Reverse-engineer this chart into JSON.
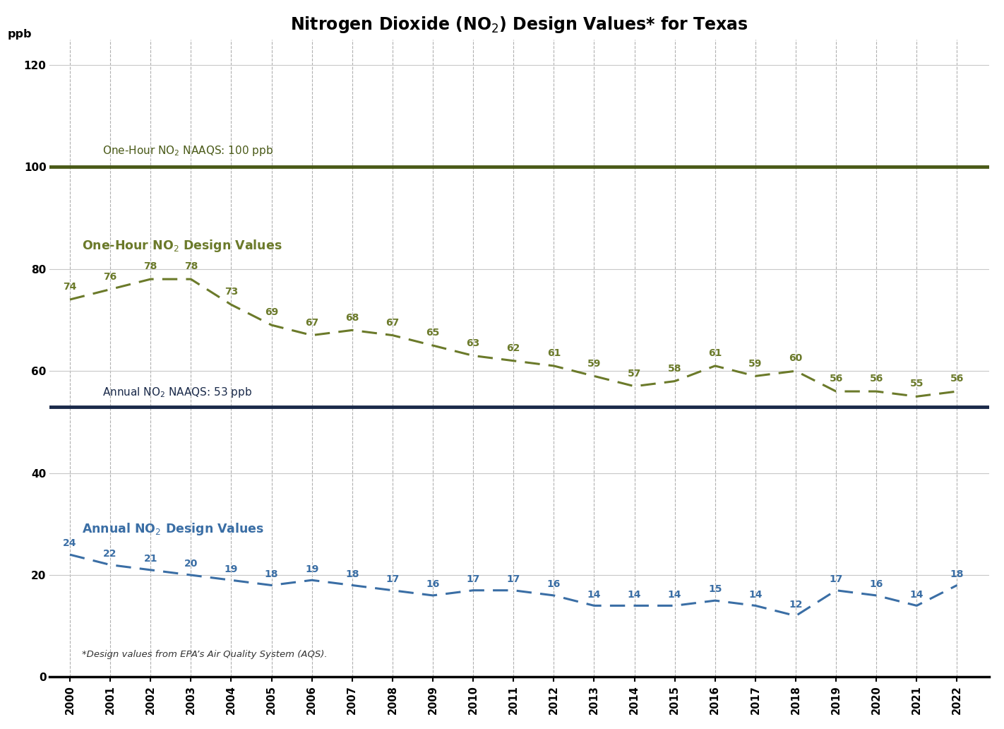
{
  "title": "Nitrogen Dioxide (NO$_2$) Design Values* for Texas",
  "years": [
    2000,
    2001,
    2002,
    2003,
    2004,
    2005,
    2006,
    2007,
    2008,
    2009,
    2010,
    2011,
    2012,
    2013,
    2014,
    2015,
    2016,
    2017,
    2018,
    2019,
    2020,
    2021,
    2022
  ],
  "one_hour_values": [
    74,
    76,
    78,
    78,
    73,
    69,
    67,
    68,
    67,
    65,
    63,
    62,
    61,
    59,
    57,
    58,
    61,
    59,
    60,
    56,
    56,
    55,
    56
  ],
  "annual_values": [
    24,
    22,
    21,
    20,
    19,
    18,
    19,
    18,
    17,
    16,
    17,
    17,
    16,
    14,
    14,
    14,
    15,
    14,
    12,
    17,
    16,
    14,
    18
  ],
  "one_hour_naaqs": 100,
  "annual_naaqs": 53,
  "one_hour_color": "#6b7a2a",
  "annual_color": "#3a6ea5",
  "one_hour_naaqs_color": "#4a5a18",
  "annual_naaqs_color": "#1a2a4a",
  "background_color": "#ffffff",
  "grid_color_h": "#c8c8c8",
  "grid_color_v": "#b0b0b0",
  "ylim": [
    0,
    125
  ],
  "yticks": [
    0,
    20,
    40,
    60,
    80,
    100,
    120
  ],
  "one_hour_naaqs_label": "One-Hour NO$_2$ NAAQS: 100 ppb",
  "annual_naaqs_label": "Annual NO$_2$ NAAQS: 53 ppb",
  "one_hour_series_label": "One-Hour NO$_2$ Design Values",
  "annual_series_label": "Annual NO$_2$ Design Values",
  "footnote": "*Design values from EPA’s Air Quality System (AQS).",
  "ylabel": "ppb"
}
